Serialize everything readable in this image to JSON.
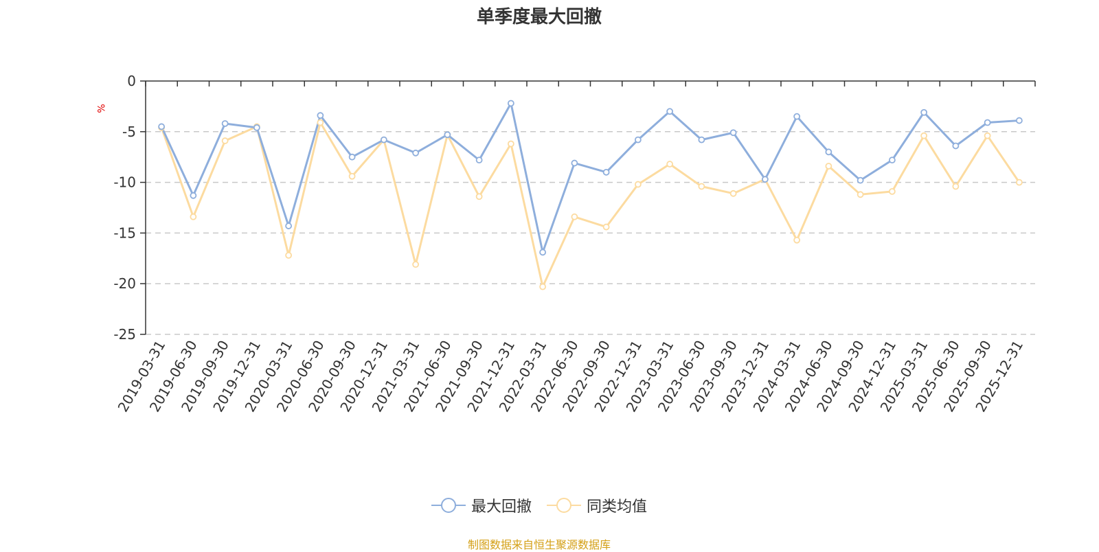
{
  "chart_data": {
    "type": "line",
    "title": "单季度最大回撤",
    "unit_label": "%",
    "ylim": [
      -25,
      0
    ],
    "yticks": [
      0,
      -5,
      -10,
      -15,
      -20,
      -25
    ],
    "grid": true,
    "legend_position": "bottom",
    "categories": [
      "2019-03-31",
      "2019-06-30",
      "2019-09-30",
      "2019-12-31",
      "2020-03-31",
      "2020-06-30",
      "2020-09-30",
      "2020-12-31",
      "2021-03-31",
      "2021-06-30",
      "2021-09-30",
      "2021-12-31",
      "2022-03-31",
      "2022-06-30",
      "2022-09-30",
      "2022-12-31",
      "2023-03-31",
      "2023-06-30",
      "2023-09-30",
      "2023-12-31",
      "2024-03-31",
      "2024-06-30",
      "2024-09-30",
      "2024-12-31",
      "2025-03-31",
      "2025-06-30",
      "2025-09-30",
      "2025-12-31"
    ],
    "series": [
      {
        "name": "最大回撤",
        "color": "#8eaedc",
        "values": [
          -4.5,
          -11.3,
          -4.2,
          -4.6,
          -14.3,
          -3.4,
          -7.5,
          -5.8,
          -7.1,
          -5.3,
          -7.8,
          -2.2,
          -16.9,
          -8.1,
          -9.0,
          -5.8,
          -3.0,
          -5.8,
          -5.1,
          -9.7,
          -3.5,
          -7.0,
          -9.8,
          -7.8,
          -3.1,
          -6.4,
          -4.1,
          -3.9
        ]
      },
      {
        "name": "同类均值",
        "color": "#fcdba0",
        "values": [
          -4.6,
          -13.4,
          -5.9,
          -4.5,
          -17.2,
          -4.1,
          -9.4,
          -5.8,
          -18.1,
          -5.3,
          -11.4,
          -6.2,
          -20.3,
          -13.4,
          -14.4,
          -10.2,
          -8.2,
          -10.4,
          -11.1,
          -9.7,
          -15.7,
          -8.4,
          -11.2,
          -10.9,
          -5.4,
          -10.4,
          -5.4,
          -10.0
        ]
      }
    ],
    "source_note": "制图数据来自恒生聚源数据库"
  }
}
